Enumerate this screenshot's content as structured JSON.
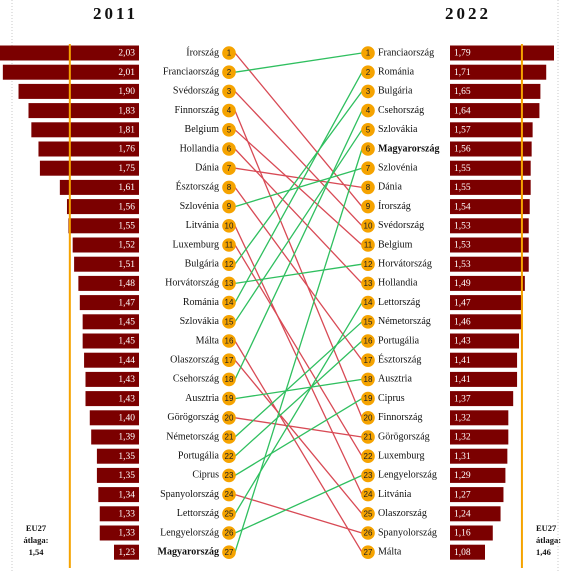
{
  "colors": {
    "bar": "#7b0000",
    "bar_text": "#ffffff",
    "avg_line": "#f5a300",
    "badge": "#f5a300",
    "rise": "#2fbf5f",
    "fall": "#d84a55",
    "label_text": "#111111"
  },
  "chart_data": {
    "type": "slopegraph",
    "left": {
      "year": "2011",
      "avg_label": "EU27 átlaga:",
      "avg_value": "1,54",
      "avg": 1.54,
      "rows": [
        {
          "rank": "1",
          "country": "Írország",
          "value": 2.03,
          "label": "2,03",
          "bold": false
        },
        {
          "rank": "2",
          "country": "Franciaország",
          "value": 2.01,
          "label": "2,01",
          "bold": false
        },
        {
          "rank": "3",
          "country": "Svédország",
          "value": 1.9,
          "label": "1,90",
          "bold": false
        },
        {
          "rank": "4",
          "country": "Finnország",
          "value": 1.83,
          "label": "1,83",
          "bold": false
        },
        {
          "rank": "5",
          "country": "Belgium",
          "value": 1.81,
          "label": "1,81",
          "bold": false
        },
        {
          "rank": "6",
          "country": "Hollandia",
          "value": 1.76,
          "label": "1,76",
          "bold": false
        },
        {
          "rank": "7",
          "country": "Dánia",
          "value": 1.75,
          "label": "1,75",
          "bold": false
        },
        {
          "rank": "8",
          "country": "Észtország",
          "value": 1.61,
          "label": "1,61",
          "bold": false
        },
        {
          "rank": "9",
          "country": "Szlovénia",
          "value": 1.56,
          "label": "1,56",
          "bold": false
        },
        {
          "rank": "10",
          "country": "Litvánia",
          "value": 1.55,
          "label": "1,55",
          "bold": false
        },
        {
          "rank": "11",
          "country": "Luxemburg",
          "value": 1.52,
          "label": "1,52",
          "bold": false
        },
        {
          "rank": "12",
          "country": "Bulgária",
          "value": 1.51,
          "label": "1,51",
          "bold": false
        },
        {
          "rank": "13",
          "country": "Horvátország",
          "value": 1.48,
          "label": "1,48",
          "bold": false
        },
        {
          "rank": "14",
          "country": "Románia",
          "value": 1.47,
          "label": "1,47",
          "bold": false
        },
        {
          "rank": "15",
          "country": "Szlovákia",
          "value": 1.45,
          "label": "1,45",
          "bold": false
        },
        {
          "rank": "16",
          "country": "Málta",
          "value": 1.45,
          "label": "1,45",
          "bold": false
        },
        {
          "rank": "17",
          "country": "Olaszország",
          "value": 1.44,
          "label": "1,44",
          "bold": false
        },
        {
          "rank": "18",
          "country": "Csehország",
          "value": 1.43,
          "label": "1,43",
          "bold": false
        },
        {
          "rank": "19",
          "country": "Ausztria",
          "value": 1.43,
          "label": "1,43",
          "bold": false
        },
        {
          "rank": "20",
          "country": "Görögország",
          "value": 1.4,
          "label": "1,40",
          "bold": false
        },
        {
          "rank": "21",
          "country": "Németország",
          "value": 1.39,
          "label": "1,39",
          "bold": false
        },
        {
          "rank": "22",
          "country": "Portugália",
          "value": 1.35,
          "label": "1,35",
          "bold": false
        },
        {
          "rank": "23",
          "country": "Ciprus",
          "value": 1.35,
          "label": "1,35",
          "bold": false
        },
        {
          "rank": "24",
          "country": "Spanyolország",
          "value": 1.34,
          "label": "1,34",
          "bold": false
        },
        {
          "rank": "25",
          "country": "Lettország",
          "value": 1.33,
          "label": "1,33",
          "bold": false
        },
        {
          "rank": "26",
          "country": "Lengyelország",
          "value": 1.33,
          "label": "1,33",
          "bold": false
        },
        {
          "rank": "27",
          "country": "Magyarország",
          "value": 1.23,
          "label": "1,23",
          "bold": true
        }
      ]
    },
    "right": {
      "year": "2022",
      "avg_label": "EU27 átlaga:",
      "avg_value": "1,46",
      "avg": 1.46,
      "rows": [
        {
          "rank": "1",
          "country": "Franciaország",
          "value": 1.79,
          "label": "1,79",
          "bold": false
        },
        {
          "rank": "2",
          "country": "Románia",
          "value": 1.71,
          "label": "1,71",
          "bold": false
        },
        {
          "rank": "3",
          "country": "Bulgária",
          "value": 1.65,
          "label": "1,65",
          "bold": false
        },
        {
          "rank": "4",
          "country": "Csehország",
          "value": 1.64,
          "label": "1,64",
          "bold": false
        },
        {
          "rank": "5",
          "country": "Szlovákia",
          "value": 1.57,
          "label": "1,57",
          "bold": false
        },
        {
          "rank": "6",
          "country": "Magyarország",
          "value": 1.56,
          "label": "1,56",
          "bold": true
        },
        {
          "rank": "7",
          "country": "Szlovénia",
          "value": 1.55,
          "label": "1,55",
          "bold": false
        },
        {
          "rank": "8",
          "country": "Dánia",
          "value": 1.55,
          "label": "1,55",
          "bold": false
        },
        {
          "rank": "9",
          "country": "Írország",
          "value": 1.54,
          "label": "1,54",
          "bold": false
        },
        {
          "rank": "10",
          "country": "Svédország",
          "value": 1.53,
          "label": "1,53",
          "bold": false
        },
        {
          "rank": "11",
          "country": "Belgium",
          "value": 1.53,
          "label": "1,53",
          "bold": false
        },
        {
          "rank": "12",
          "country": "Horvátország",
          "value": 1.53,
          "label": "1,53",
          "bold": false
        },
        {
          "rank": "13",
          "country": "Hollandia",
          "value": 1.49,
          "label": "1,49",
          "bold": false
        },
        {
          "rank": "14",
          "country": "Lettország",
          "value": 1.47,
          "label": "1,47",
          "bold": false
        },
        {
          "rank": "15",
          "country": "Németország",
          "value": 1.46,
          "label": "1,46",
          "bold": false
        },
        {
          "rank": "16",
          "country": "Portugália",
          "value": 1.43,
          "label": "1,43",
          "bold": false
        },
        {
          "rank": "17",
          "country": "Észtország",
          "value": 1.41,
          "label": "1,41",
          "bold": false
        },
        {
          "rank": "18",
          "country": "Ausztria",
          "value": 1.41,
          "label": "1,41",
          "bold": false
        },
        {
          "rank": "19",
          "country": "Ciprus",
          "value": 1.37,
          "label": "1,37",
          "bold": false
        },
        {
          "rank": "20",
          "country": "Finnország",
          "value": 1.32,
          "label": "1,32",
          "bold": false
        },
        {
          "rank": "21",
          "country": "Görögország",
          "value": 1.32,
          "label": "1,32",
          "bold": false
        },
        {
          "rank": "22",
          "country": "Luxemburg",
          "value": 1.31,
          "label": "1,31",
          "bold": false
        },
        {
          "rank": "23",
          "country": "Lengyelország",
          "value": 1.29,
          "label": "1,29",
          "bold": false
        },
        {
          "rank": "24",
          "country": "Litvánia",
          "value": 1.27,
          "label": "1,27",
          "bold": false
        },
        {
          "rank": "25",
          "country": "Olaszország",
          "value": 1.24,
          "label": "1,24",
          "bold": false
        },
        {
          "rank": "26",
          "country": "Spanyolország",
          "value": 1.16,
          "label": "1,16",
          "bold": false
        },
        {
          "rank": "27",
          "country": "Málta",
          "value": 1.08,
          "label": "1,08",
          "bold": false
        }
      ]
    }
  }
}
